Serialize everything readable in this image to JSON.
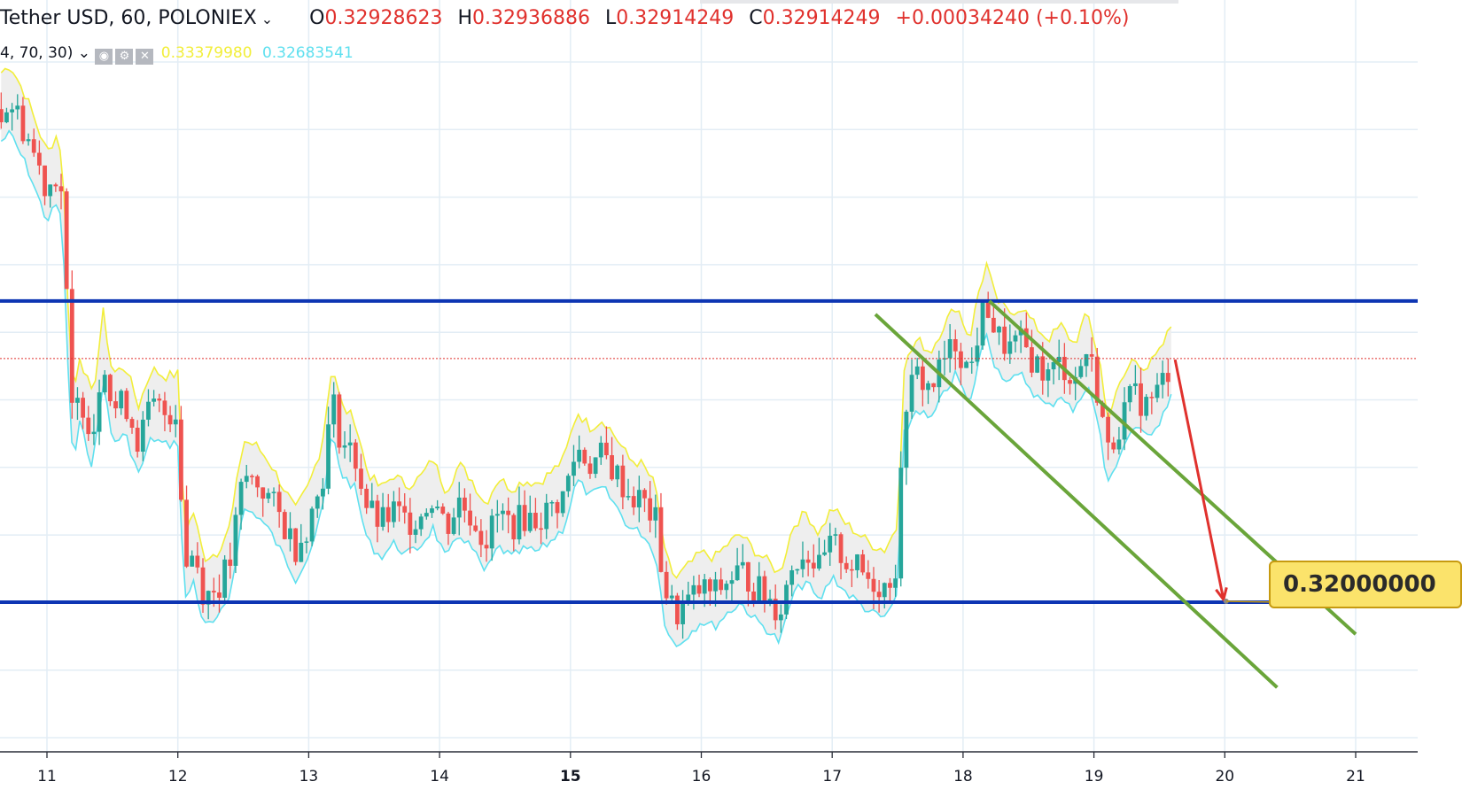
{
  "header": {
    "symbol": "Tether USD, 60, POLONIEX",
    "open_label": "O",
    "open": "0.32928623",
    "high_label": "H",
    "high": "0.32936886",
    "low_label": "L",
    "low": "0.32914249",
    "close_label": "C",
    "close": "0.32914249",
    "change": "+0.00034240 (+0.10%)",
    "chevron_icon": "chevron-down-icon"
  },
  "indicator": {
    "params": "4, 70, 30)",
    "upper_value": "0.33379980",
    "lower_value": "0.32683541",
    "icons": [
      "eye-icon",
      "gear-icon",
      "close-icon"
    ],
    "upper_color": "#f2ee3a",
    "lower_color": "#5fe0ef"
  },
  "annotations": {
    "target_label": "0.32000000"
  },
  "colors": {
    "up": "#26a69a",
    "down": "#ef5350",
    "band_fill": "#eeeeee",
    "level_line": "#0d35b3",
    "channel": "#6aa53a",
    "arrow": "#e0312d",
    "grid": "#e3edf5",
    "last_price_line": "#e0312d"
  },
  "chart_data": {
    "type": "candlestick",
    "x_ticks": [
      "11",
      "12",
      "13",
      "14",
      "15",
      "16",
      "17",
      "18",
      "19",
      "20",
      "21"
    ],
    "price_range_visible": [
      0.318,
      0.343
    ],
    "horizontal_levels": [
      0.3313,
      0.32
    ],
    "last_price": 0.32914,
    "target_price": 0.32,
    "channel_lines": [
      {
        "from": {
          "day": 17.33,
          "price": 0.3308
        },
        "to": {
          "day": 20.4,
          "price": 0.3168
        }
      },
      {
        "from": {
          "day": 18.2,
          "price": 0.3313
        },
        "to": {
          "day": 21.0,
          "price": 0.3188
        }
      }
    ],
    "projection_arrow": {
      "from": {
        "day": 19.62,
        "price": 0.3291
      },
      "to": {
        "day": 19.99,
        "price": 0.3201
      }
    },
    "price_path": [
      [
        10.65,
        0.3385
      ],
      [
        10.72,
        0.3388
      ],
      [
        10.85,
        0.3375
      ],
      [
        11.0,
        0.3355
      ],
      [
        11.08,
        0.3362
      ],
      [
        11.12,
        0.3352
      ],
      [
        11.16,
        0.33
      ],
      [
        11.2,
        0.3263
      ],
      [
        11.25,
        0.3279
      ],
      [
        11.35,
        0.3263
      ],
      [
        11.43,
        0.3295
      ],
      [
        11.5,
        0.3272
      ],
      [
        11.6,
        0.3275
      ],
      [
        11.7,
        0.326
      ],
      [
        11.8,
        0.3274
      ],
      [
        11.9,
        0.3271
      ],
      [
        12.0,
        0.3272
      ],
      [
        12.05,
        0.3212
      ],
      [
        12.12,
        0.322
      ],
      [
        12.2,
        0.3203
      ],
      [
        12.3,
        0.3205
      ],
      [
        12.4,
        0.3215
      ],
      [
        12.5,
        0.3247
      ],
      [
        12.6,
        0.3245
      ],
      [
        12.7,
        0.3239
      ],
      [
        12.8,
        0.323
      ],
      [
        12.9,
        0.3221
      ],
      [
        13.0,
        0.323
      ],
      [
        13.1,
        0.3245
      ],
      [
        13.18,
        0.3276
      ],
      [
        13.25,
        0.326
      ],
      [
        13.35,
        0.3255
      ],
      [
        13.45,
        0.3235
      ],
      [
        13.55,
        0.3229
      ],
      [
        13.65,
        0.3234
      ],
      [
        13.75,
        0.323
      ],
      [
        13.85,
        0.3233
      ],
      [
        13.95,
        0.324
      ],
      [
        14.05,
        0.3228
      ],
      [
        14.15,
        0.3238
      ],
      [
        14.25,
        0.3232
      ],
      [
        14.35,
        0.3223
      ],
      [
        14.45,
        0.3233
      ],
      [
        14.55,
        0.3229
      ],
      [
        14.65,
        0.3232
      ],
      [
        14.75,
        0.3231
      ],
      [
        14.85,
        0.3235
      ],
      [
        14.95,
        0.324
      ],
      [
        15.05,
        0.3258
      ],
      [
        15.15,
        0.3252
      ],
      [
        15.25,
        0.3255
      ],
      [
        15.35,
        0.3248
      ],
      [
        15.45,
        0.324
      ],
      [
        15.55,
        0.3238
      ],
      [
        15.65,
        0.323
      ],
      [
        15.72,
        0.3205
      ],
      [
        15.8,
        0.3195
      ],
      [
        15.9,
        0.32
      ],
      [
        16.0,
        0.3205
      ],
      [
        16.1,
        0.3203
      ],
      [
        16.2,
        0.3208
      ],
      [
        16.3,
        0.3212
      ],
      [
        16.4,
        0.3206
      ],
      [
        16.5,
        0.3202
      ],
      [
        16.6,
        0.3197
      ],
      [
        16.7,
        0.3215
      ],
      [
        16.8,
        0.322
      ],
      [
        16.9,
        0.3212
      ],
      [
        17.0,
        0.3222
      ],
      [
        17.1,
        0.3216
      ],
      [
        17.2,
        0.3212
      ],
      [
        17.3,
        0.3208
      ],
      [
        17.4,
        0.3206
      ],
      [
        17.5,
        0.3215
      ],
      [
        17.55,
        0.3275
      ],
      [
        17.65,
        0.3285
      ],
      [
        17.75,
        0.328
      ],
      [
        17.85,
        0.329
      ],
      [
        17.95,
        0.3298
      ],
      [
        18.05,
        0.3285
      ],
      [
        18.12,
        0.3303
      ],
      [
        18.18,
        0.3313
      ],
      [
        18.25,
        0.33
      ],
      [
        18.35,
        0.3295
      ],
      [
        18.45,
        0.3297
      ],
      [
        18.55,
        0.329
      ],
      [
        18.65,
        0.3285
      ],
      [
        18.75,
        0.329
      ],
      [
        18.85,
        0.3283
      ],
      [
        18.95,
        0.3295
      ],
      [
        19.05,
        0.3275
      ],
      [
        19.1,
        0.3255
      ],
      [
        19.2,
        0.3268
      ],
      [
        19.3,
        0.3278
      ],
      [
        19.4,
        0.3274
      ],
      [
        19.5,
        0.328
      ],
      [
        19.6,
        0.3291
      ]
    ],
    "band_width": 0.0022
  }
}
